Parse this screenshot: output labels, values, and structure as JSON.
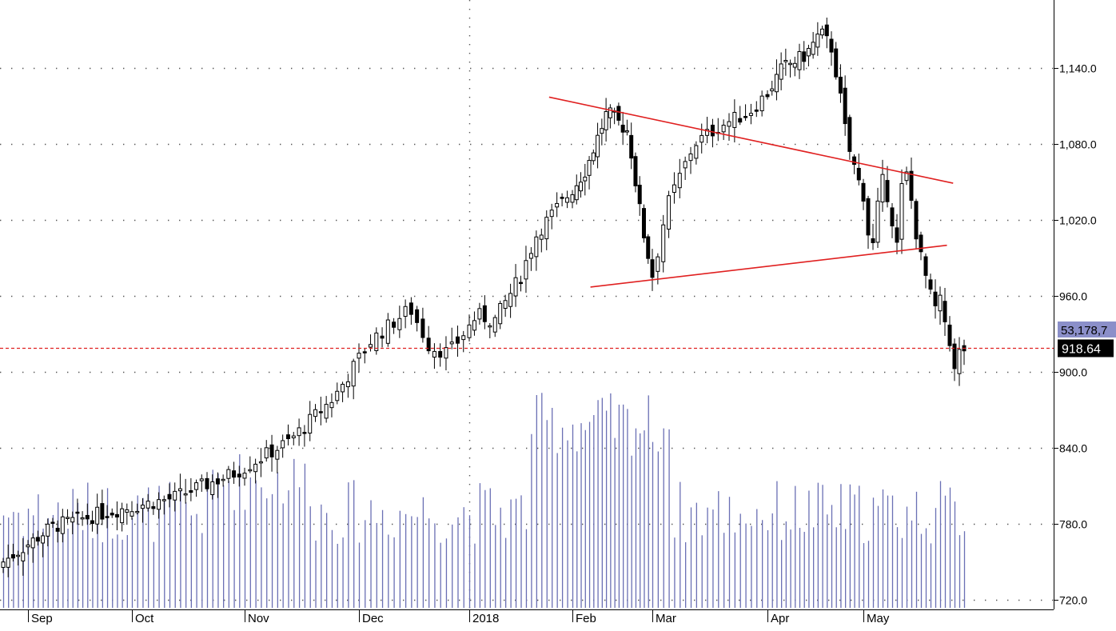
{
  "chart_data": {
    "type": "candlestick",
    "x_axis_labels": [
      "Sep",
      "Oct",
      "Nov",
      "Dec",
      "2018",
      "Feb",
      "Mar",
      "Apr",
      "May"
    ],
    "y_axis": {
      "ticks": [
        "1,140.0",
        "1,080.0",
        "1,020.0",
        "960.0",
        "900.0",
        "840.0",
        "780.0",
        "720.0"
      ],
      "tick_values": [
        1140,
        1080,
        1020,
        960,
        900,
        840,
        780,
        720
      ],
      "range": [
        714,
        1176
      ],
      "gridlines": "dotted"
    },
    "price_label": "918.64",
    "price_value": 918.64,
    "volume_label": "53,178,7",
    "trendlines": [
      {
        "from": {
          "month": "Jan",
          "day": 25,
          "value": 1117
        },
        "to": {
          "month": "May",
          "day": 30,
          "value": 1049
        }
      },
      {
        "from": {
          "month": "Feb",
          "day": 8,
          "value": 967
        },
        "to": {
          "month": "May",
          "day": 28,
          "value": 1000
        }
      }
    ],
    "colors": {
      "candle_up": "#ffffff",
      "candle_down": "#000000",
      "volume": "#6a6fb4",
      "trendline": "#e02020",
      "price_line": "#e02020",
      "price_label_bg": "#000000",
      "volume_label_bg": "#8b8fc9",
      "grid": "#555555"
    }
  }
}
